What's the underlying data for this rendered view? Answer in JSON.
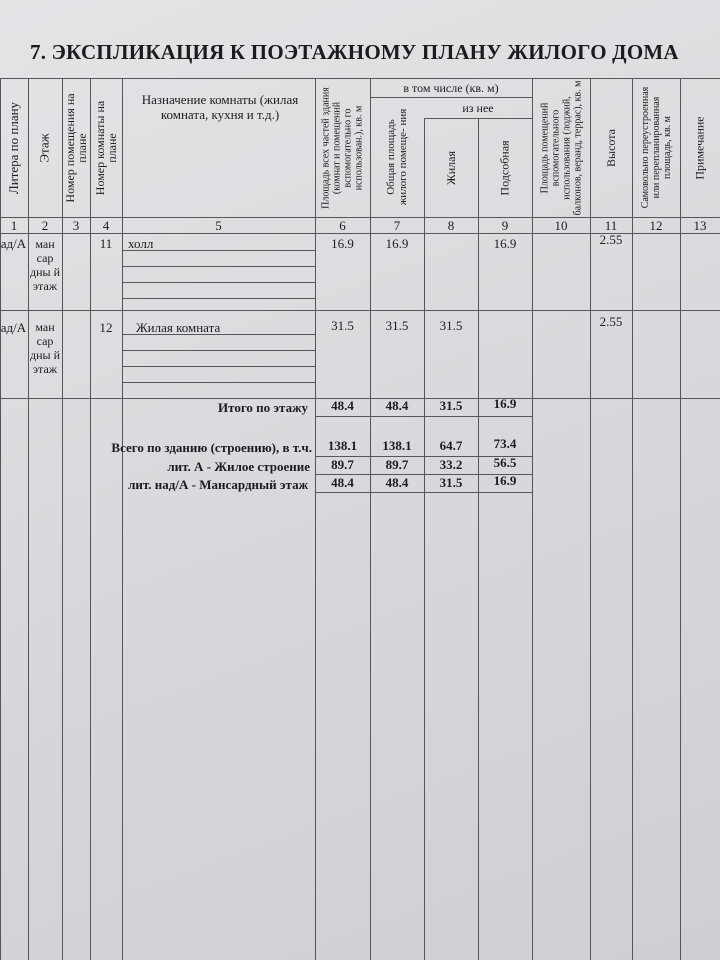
{
  "title": "7. ЭКСПЛИКАЦИЯ К ПОЭТАЖНОМУ ПЛАНУ ЖИЛОГО ДОМА",
  "headers": {
    "c1": "Литера по плану",
    "c2": "Этаж",
    "c3": "Номер помещения на плане",
    "c4": "Номер комнаты на плане",
    "c5": "Назначение комнаты (жилая комната, кухня и т.д.)",
    "c6": "Площадь всех частей здания (комнат и помещений вспомогательно го использован.), кв. м",
    "group": "в том числе (кв. м)",
    "sub": "из нее",
    "c7": "Общая площадь жилого помеще- ния",
    "c8": "Жилая",
    "c9": "Подсобная",
    "c10": "Площадь помещений вспомогательного использования (лоджий, балконов, веранд, террас), кв. м",
    "c11": "Высота",
    "c12": "Самовольно переустроенная или перепланированная площадь, кв. м",
    "c13": "Примечание"
  },
  "col_numbers": [
    "1",
    "2",
    "3",
    "4",
    "5",
    "6",
    "7",
    "8",
    "9",
    "10",
    "11",
    "12",
    "13"
  ],
  "rows": [
    {
      "litera": "над/А",
      "floor": "ман сар дны й этаж",
      "room": "11",
      "name": "холл",
      "c6": "16.9",
      "c7": "16.9",
      "c8": "",
      "c9": "16.9",
      "c11": "2.55"
    },
    {
      "litera": "над/А",
      "floor": "ман сар дны й этаж",
      "room": "12",
      "name": "Жилая комната",
      "c6": "31.5",
      "c7": "31.5",
      "c8": "31.5",
      "c9": "",
      "c11": "2.55"
    }
  ],
  "floor_total": {
    "label": "Итого по этажу",
    "c6": "48.4",
    "c7": "48.4",
    "c8": "31.5",
    "c9": "16.9"
  },
  "totals": [
    {
      "label": "Всего по зданию (строению), в т.ч.",
      "c6": "138.1",
      "c7": "138.1",
      "c8": "64.7",
      "c9": "73.4"
    },
    {
      "label": "лит. А - Жилое строение",
      "c6": "89.7",
      "c7": "89.7",
      "c8": "33.2",
      "c9": "56.5"
    },
    {
      "label": "лит. над/А - Мансардный этаж",
      "c6": "48.4",
      "c7": "48.4",
      "c8": "31.5",
      "c9": "16.9"
    }
  ]
}
